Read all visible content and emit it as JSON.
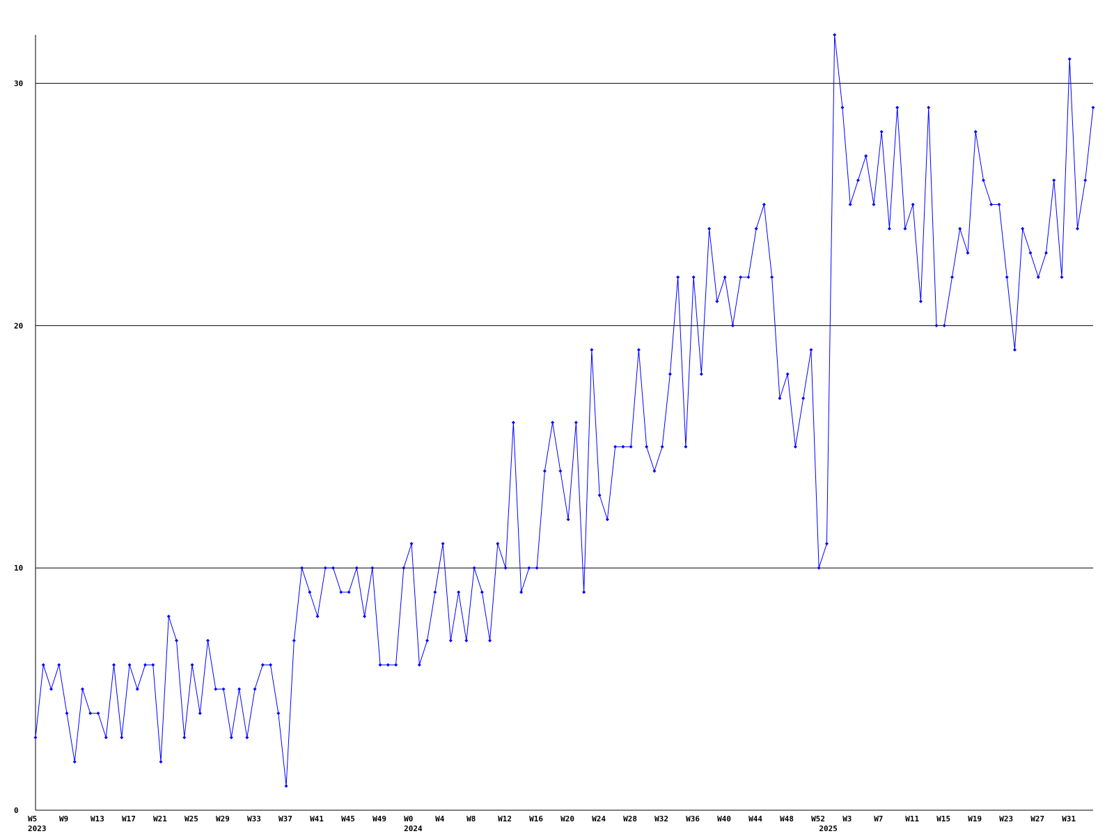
{
  "chart_data": {
    "type": "line",
    "categories": [
      "W5",
      null,
      null,
      null,
      "W9",
      null,
      null,
      null,
      "W13",
      null,
      null,
      null,
      "W17",
      null,
      null,
      null,
      "W21",
      null,
      null,
      null,
      "W25",
      null,
      null,
      null,
      "W29",
      null,
      null,
      null,
      "W33",
      null,
      null,
      null,
      "W37",
      null,
      null,
      null,
      "W41",
      null,
      null,
      null,
      "W45",
      null,
      null,
      null,
      "W49",
      null,
      null,
      null,
      "W0",
      null,
      null,
      null,
      "W4",
      null,
      null,
      null,
      "W8",
      null,
      null,
      null,
      "W12",
      null,
      null,
      null,
      "W16",
      null,
      null,
      null,
      "W20",
      null,
      null,
      null,
      "W24",
      null,
      null,
      null,
      "W28",
      null,
      null,
      null,
      "W32",
      null,
      null,
      null,
      "W36",
      null,
      null,
      null,
      "W40",
      null,
      null,
      null,
      "W44",
      null,
      null,
      null,
      "W48",
      null,
      null,
      null,
      "W52",
      null,
      null,
      null,
      "W3",
      null,
      null,
      null,
      "W7",
      null,
      null,
      null,
      "W11",
      null,
      null,
      null,
      "W15",
      null,
      null,
      null,
      "W19",
      null,
      null,
      null,
      "W23",
      null,
      null,
      null,
      "W27",
      null,
      null,
      null,
      "W31",
      null,
      null,
      null
    ],
    "years": [
      "2023",
      null,
      null,
      null,
      null,
      null,
      null,
      null,
      null,
      null,
      null,
      null,
      null,
      null,
      null,
      null,
      null,
      null,
      null,
      null,
      null,
      null,
      null,
      null,
      null,
      null,
      null,
      null,
      null,
      null,
      null,
      null,
      null,
      null,
      null,
      null,
      null,
      null,
      null,
      null,
      null,
      null,
      null,
      null,
      null,
      null,
      null,
      null,
      "2024",
      null,
      null,
      null,
      null,
      null,
      null,
      null,
      null,
      null,
      null,
      null,
      null,
      null,
      null,
      null,
      null,
      null,
      null,
      null,
      null,
      null,
      null,
      null,
      null,
      null,
      null,
      null,
      null,
      null,
      null,
      null,
      null,
      null,
      null,
      null,
      null,
      null,
      null,
      null,
      null,
      null,
      null,
      null,
      null,
      null,
      null,
      null,
      null,
      null,
      null,
      null,
      null,
      "2025",
      null,
      null,
      null,
      null,
      null,
      null,
      null,
      null,
      null,
      null,
      null,
      null,
      null,
      null,
      null,
      null,
      null,
      null,
      null,
      null,
      null,
      null,
      null,
      null,
      null,
      null,
      null,
      null,
      null,
      null,
      null,
      null,
      null,
      null
    ],
    "series": [
      {
        "color": "#0000ff",
        "values": [
          3,
          6,
          5,
          6,
          4,
          2,
          5,
          4,
          4,
          3,
          6,
          3,
          6,
          5,
          6,
          6,
          2,
          8,
          7,
          3,
          6,
          4,
          7,
          5,
          5,
          3,
          5,
          3,
          5,
          6,
          6,
          4,
          1,
          7,
          10,
          9,
          8,
          10,
          10,
          9,
          9,
          10,
          8,
          10,
          6,
          6,
          6,
          10,
          11,
          6,
          7,
          9,
          11,
          7,
          9,
          7,
          10,
          9,
          7,
          11,
          10,
          16,
          9,
          10,
          10,
          14,
          16,
          14,
          12,
          16,
          9,
          19,
          13,
          12,
          15,
          15,
          15,
          19,
          15,
          14,
          15,
          18,
          22,
          15,
          22,
          18,
          24,
          21,
          22,
          20,
          22,
          22,
          24,
          25,
          22,
          17,
          18,
          15,
          17,
          19,
          10,
          11,
          32,
          29,
          25,
          26,
          27,
          25,
          28,
          24,
          29,
          24,
          25,
          21,
          29,
          20,
          20,
          22,
          24,
          23,
          28,
          26,
          25,
          25,
          22,
          19,
          24,
          23,
          22,
          23,
          26,
          22,
          31,
          24,
          26,
          29
        ]
      }
    ],
    "ylim": [
      0,
      32
    ],
    "yticks": [
      0,
      10,
      20,
      30
    ],
    "grid": true
  }
}
